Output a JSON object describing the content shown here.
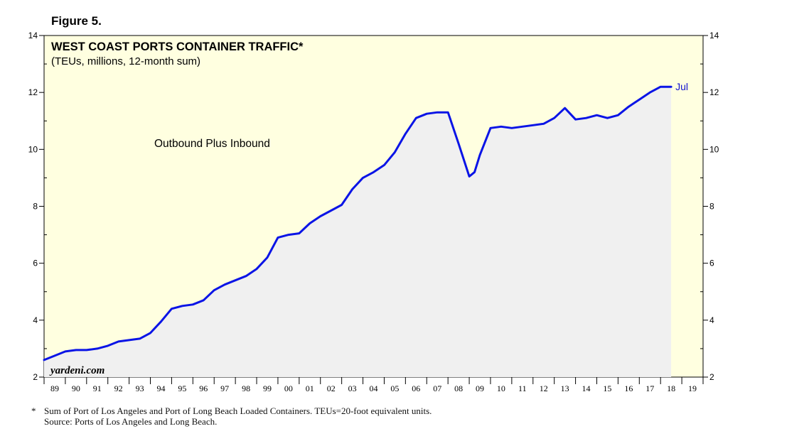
{
  "figure_label": "Figure 5.",
  "chart_data": {
    "type": "area",
    "title": "WEST COAST PORTS CONTAINER TRAFFIC*",
    "subtitle": "(TEUs, millions, 12-month sum)",
    "annotation": "Outbound Plus Inbound",
    "end_label": "Jul",
    "watermark": "yardeni.com",
    "ylim": [
      2,
      14
    ],
    "y_ticks": [
      2,
      4,
      6,
      8,
      10,
      12,
      14
    ],
    "x_tick_labels": [
      "89",
      "90",
      "91",
      "92",
      "93",
      "94",
      "95",
      "96",
      "97",
      "98",
      "99",
      "00",
      "01",
      "02",
      "03",
      "04",
      "05",
      "06",
      "07",
      "08",
      "09",
      "10",
      "11",
      "12",
      "13",
      "14",
      "15",
      "16",
      "17",
      "18",
      "19"
    ],
    "xlim": [
      1989.0,
      2020.0
    ],
    "series": [
      {
        "name": "Outbound Plus Inbound",
        "x": [
          1989.0,
          1989.5,
          1990.0,
          1990.5,
          1991.0,
          1991.5,
          1992.0,
          1992.5,
          1993.0,
          1993.5,
          1994.0,
          1994.5,
          1995.0,
          1995.5,
          1996.0,
          1996.5,
          1997.0,
          1997.5,
          1998.0,
          1998.5,
          1999.0,
          1999.5,
          2000.0,
          2000.5,
          2001.0,
          2001.5,
          2002.0,
          2002.5,
          2003.0,
          2003.5,
          2004.0,
          2004.5,
          2005.0,
          2005.5,
          2006.0,
          2006.5,
          2007.0,
          2007.5,
          2008.0,
          2008.5,
          2009.0,
          2009.25,
          2009.5,
          2010.0,
          2010.5,
          2011.0,
          2011.5,
          2012.0,
          2012.5,
          2013.0,
          2013.5,
          2014.0,
          2014.5,
          2015.0,
          2015.5,
          2016.0,
          2016.5,
          2017.0,
          2017.5,
          2018.0,
          2018.5
        ],
        "values": [
          2.6,
          2.75,
          2.9,
          2.95,
          2.95,
          3.0,
          3.1,
          3.25,
          3.3,
          3.35,
          3.55,
          3.95,
          4.4,
          4.5,
          4.55,
          4.7,
          5.05,
          5.25,
          5.4,
          5.55,
          5.8,
          6.2,
          6.9,
          7.0,
          7.05,
          7.4,
          7.65,
          7.85,
          8.05,
          8.6,
          9.0,
          9.2,
          9.45,
          9.9,
          10.55,
          11.1,
          11.25,
          11.3,
          11.3,
          10.2,
          9.05,
          9.2,
          9.8,
          10.75,
          10.8,
          10.75,
          10.8,
          10.85,
          10.9,
          11.1,
          11.45,
          11.05,
          11.1,
          11.2,
          11.1,
          11.2,
          11.5,
          11.75,
          12.0,
          12.2,
          12.2
        ]
      }
    ]
  },
  "footnote": {
    "star": "*",
    "note": "Sum of Port of Los Angeles and Port of Long Beach Loaded Containers. TEUs=20-foot equivalent units.",
    "source": "Source: Ports of Los Angeles and Long Beach."
  },
  "colors": {
    "plot_bg": "#ffffe0",
    "area_fill": "#f0f0f0",
    "line": "#0a14e6",
    "axis": "#000000"
  }
}
